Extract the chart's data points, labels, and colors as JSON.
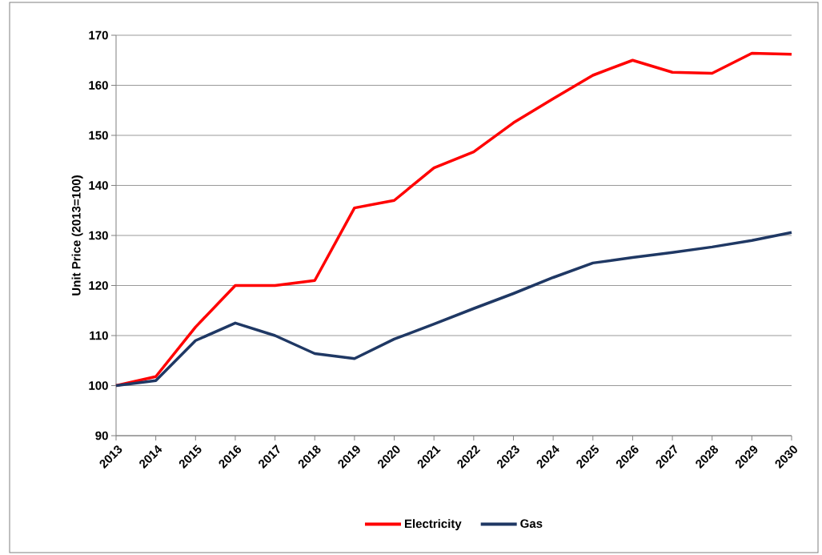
{
  "chart_data": {
    "type": "line",
    "ylabel": "Unit Price (2013=100)",
    "categories": [
      "2013",
      "2014",
      "2015",
      "2016",
      "2017",
      "2018",
      "2019",
      "2020",
      "2021",
      "2022",
      "2023",
      "2024",
      "2025",
      "2026",
      "2027",
      "2028",
      "2029",
      "2030"
    ],
    "series": [
      {
        "name": "Electricity",
        "color": "#ff0000",
        "values": [
          100,
          101.8,
          111.7,
          120,
          120,
          121,
          135.5,
          137,
          143.5,
          146.7,
          152.5,
          157.3,
          162,
          165,
          162.6,
          162.4,
          166.4,
          166.2
        ]
      },
      {
        "name": "Gas",
        "color": "#1f3864",
        "values": [
          100,
          101,
          109,
          112.5,
          110,
          106.4,
          105.4,
          109.3,
          112.3,
          115.4,
          118.4,
          121.6,
          124.5,
          125.6,
          126.6,
          127.7,
          129,
          130.6
        ]
      }
    ],
    "ylim": [
      90,
      170
    ],
    "yticks": [
      90,
      100,
      110,
      120,
      130,
      140,
      150,
      160,
      170
    ],
    "grid": "y",
    "legend": "bottom",
    "marker": "none",
    "line_style": "solid"
  }
}
